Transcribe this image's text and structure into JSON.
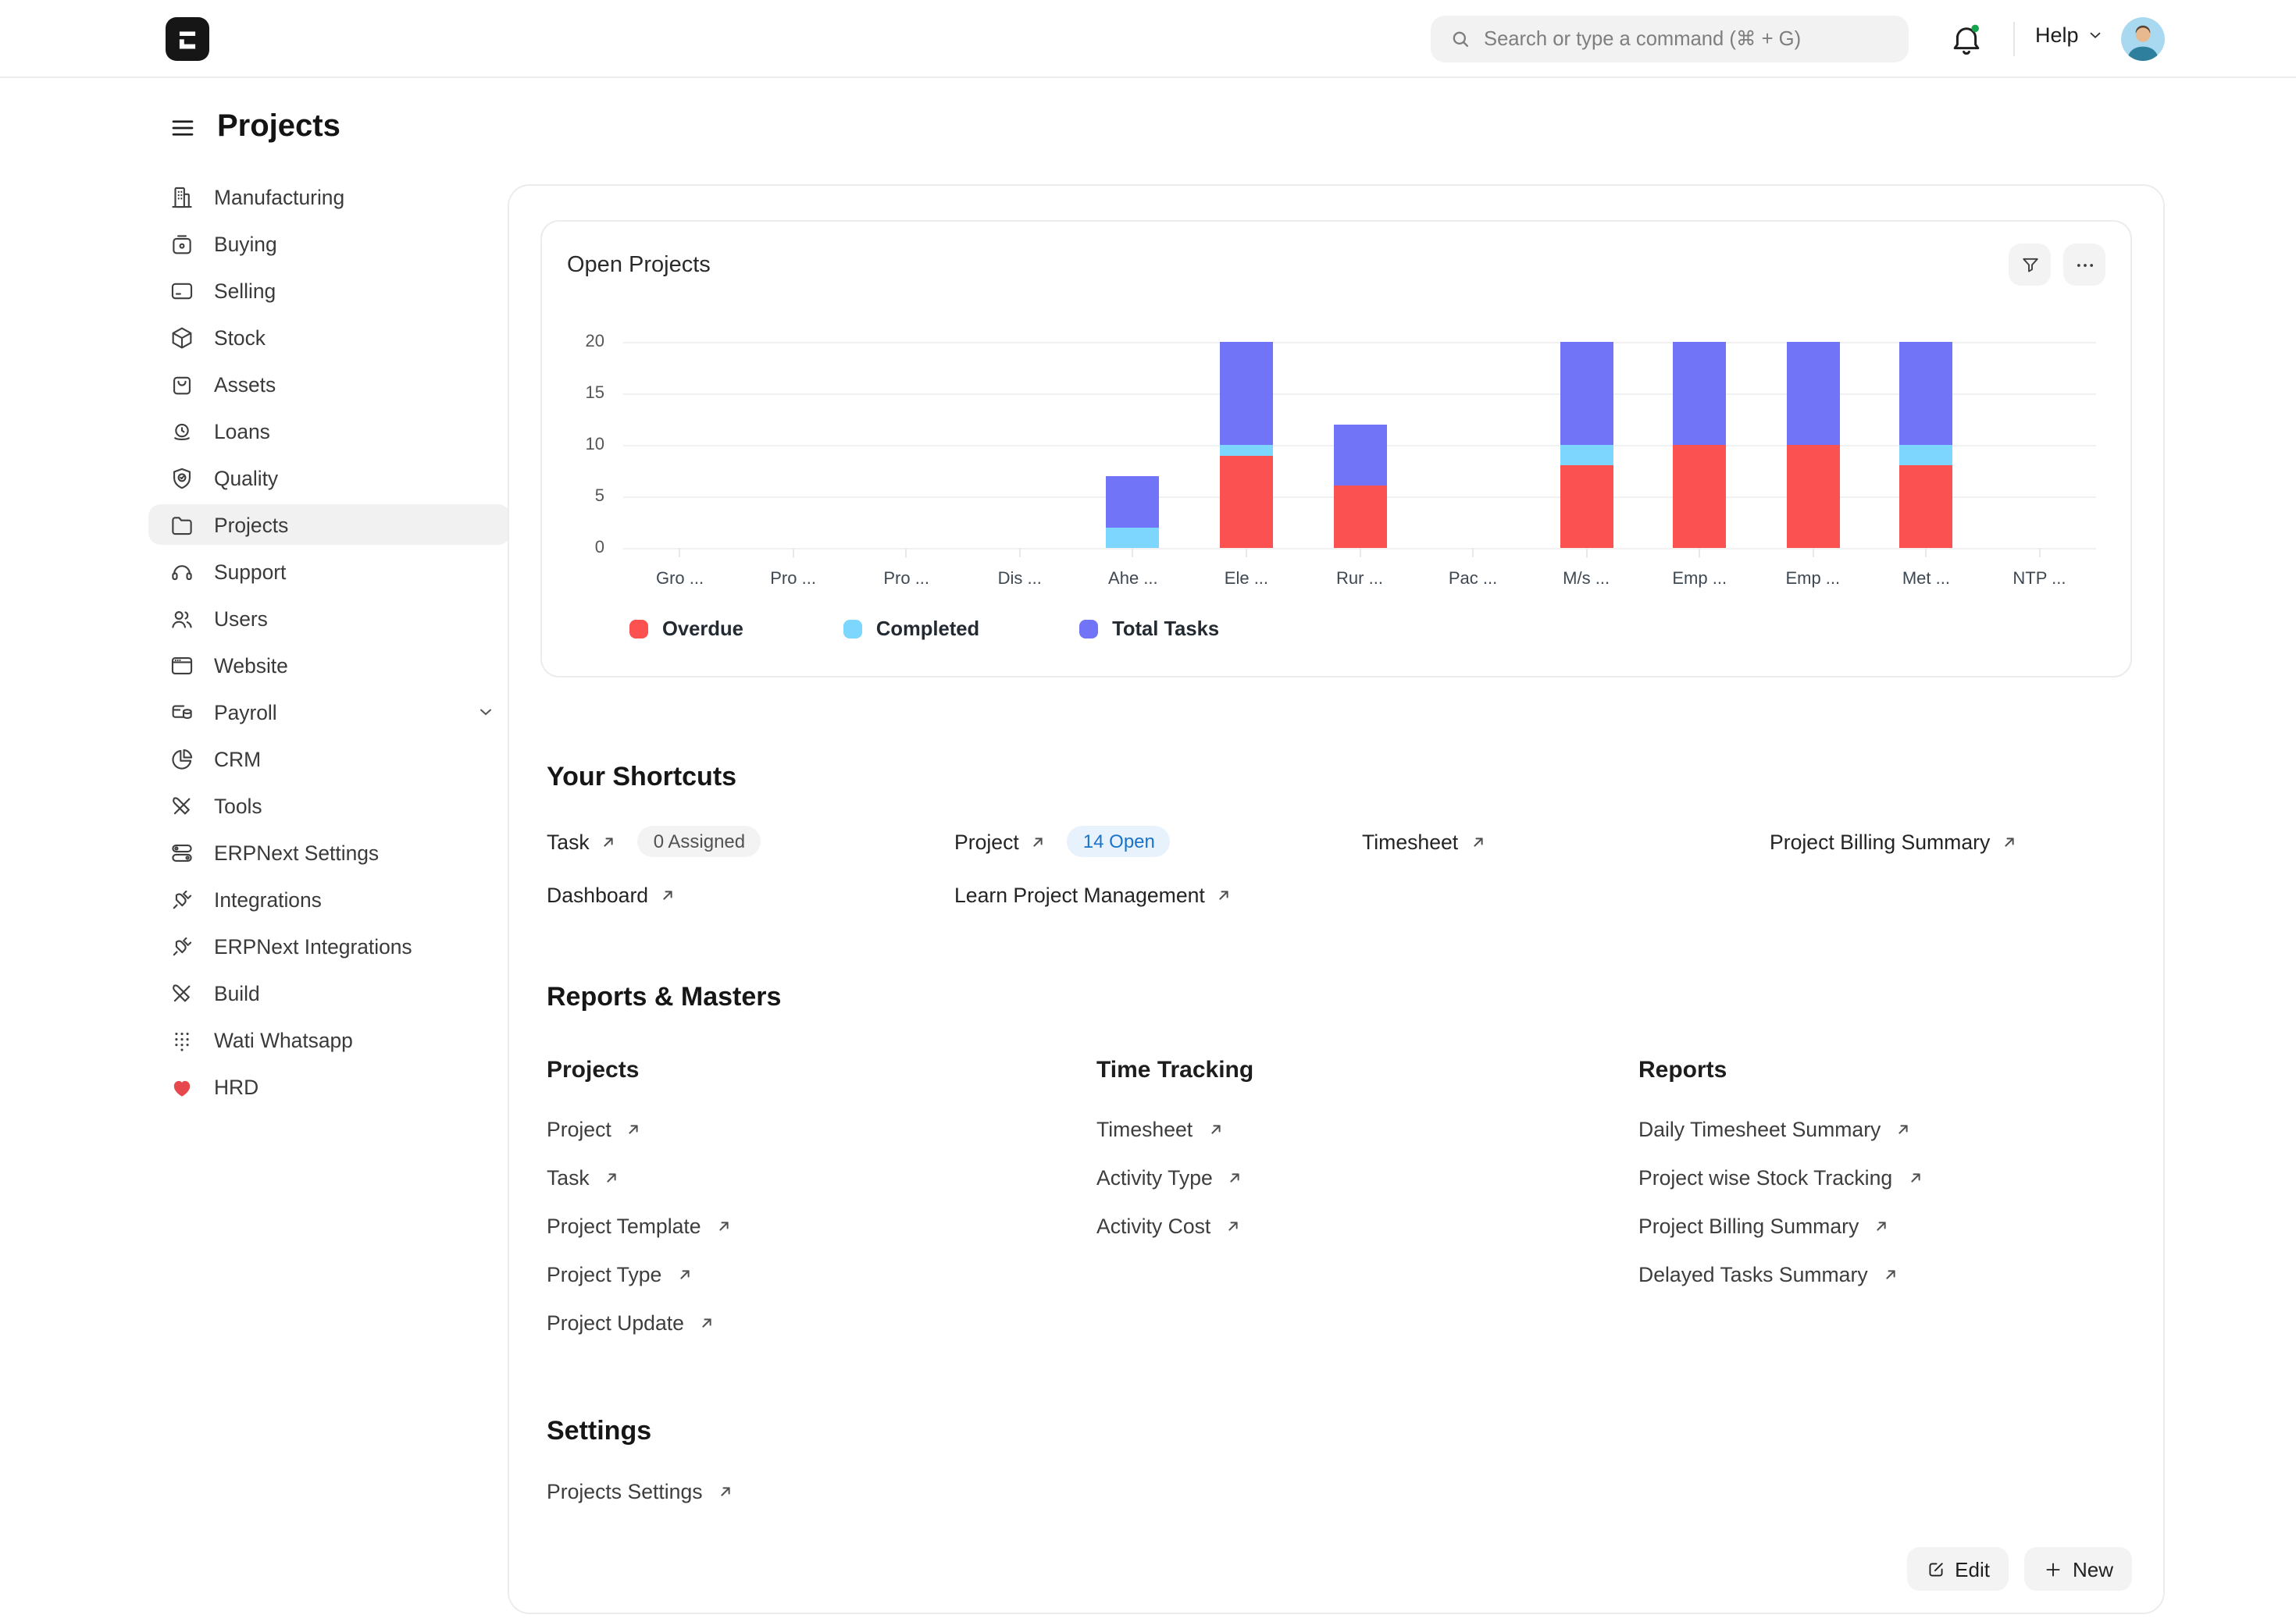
{
  "app": {
    "logo_glyph": "E"
  },
  "topbar": {
    "search_placeholder": "Search or type a command (⌘ + G)",
    "help_label": "Help"
  },
  "sidebar": {
    "title": "Projects",
    "selected": "Projects",
    "items": [
      {
        "label": "Manufacturing",
        "icon": "factory-icon"
      },
      {
        "label": "Buying",
        "icon": "buying-bag-icon"
      },
      {
        "label": "Selling",
        "icon": "credit-card-icon"
      },
      {
        "label": "Stock",
        "icon": "box-icon"
      },
      {
        "label": "Assets",
        "icon": "shopping-bag-icon"
      },
      {
        "label": "Loans",
        "icon": "loans-icon"
      },
      {
        "label": "Quality",
        "icon": "shield-check-icon"
      },
      {
        "label": "Projects",
        "icon": "folder-icon"
      },
      {
        "label": "Support",
        "icon": "headset-icon"
      },
      {
        "label": "Users",
        "icon": "users-icon"
      },
      {
        "label": "Website",
        "icon": "browser-icon"
      },
      {
        "label": "Payroll",
        "icon": "payroll-icon",
        "chevron": true
      },
      {
        "label": "CRM",
        "icon": "pie-chart-icon"
      },
      {
        "label": "Tools",
        "icon": "tools-icon"
      },
      {
        "label": "ERPNext Settings",
        "icon": "toggles-icon"
      },
      {
        "label": "Integrations",
        "icon": "plug-icon"
      },
      {
        "label": "ERPNext Integrations",
        "icon": "plug-icon"
      },
      {
        "label": "Build",
        "icon": "tools-icon"
      },
      {
        "label": "Wati Whatsapp",
        "icon": "dots-grid-icon"
      },
      {
        "label": "HRD",
        "icon": "heart-icon"
      }
    ]
  },
  "chart_card": {
    "title": "Open Projects"
  },
  "chart_data": {
    "type": "bar",
    "stacked": true,
    "title": "Open Projects",
    "categories": [
      "Gro ...",
      "Pro ...",
      "Pro ...",
      "Dis ...",
      "Ahe ...",
      "Ele ...",
      "Rur ...",
      "Pac ...",
      "M/s ...",
      "Emp ...",
      "Emp ...",
      "Met ...",
      "NTP ..."
    ],
    "series": [
      {
        "name": "Overdue",
        "color": "#fb5151",
        "values": [
          0,
          0,
          0,
          0,
          0,
          9,
          6,
          0,
          8,
          10,
          10,
          8,
          0
        ]
      },
      {
        "name": "Completed",
        "color": "#7cd6fd",
        "values": [
          0,
          0,
          0,
          0,
          2,
          1,
          0,
          0,
          2,
          0,
          0,
          2,
          0
        ]
      },
      {
        "name": "Total Tasks",
        "color": "#7274f7",
        "values": [
          0,
          0,
          0,
          0,
          5,
          10,
          6,
          0,
          10,
          10,
          10,
          10,
          0
        ]
      }
    ],
    "ylim": [
      0,
      20
    ],
    "yticks": [
      0,
      5,
      10,
      15,
      20
    ],
    "grid": true,
    "legend_position": "bottom"
  },
  "shortcuts": {
    "heading": "Your Shortcuts",
    "items": [
      {
        "label": "Task",
        "badge": "0 Assigned",
        "badge_style": "gray"
      },
      {
        "label": "Project",
        "badge": "14 Open",
        "badge_style": "blue"
      },
      {
        "label": "Timesheet"
      },
      {
        "label": "Project Billing Summary"
      },
      {
        "label": "Dashboard"
      },
      {
        "label": "Learn Project Management"
      }
    ]
  },
  "reports_masters": {
    "heading": "Reports & Masters",
    "columns": [
      {
        "title": "Projects",
        "links": [
          "Project",
          "Task",
          "Project Template",
          "Project Type",
          "Project Update"
        ]
      },
      {
        "title": "Time Tracking",
        "links": [
          "Timesheet",
          "Activity Type",
          "Activity Cost"
        ]
      },
      {
        "title": "Reports",
        "links": [
          "Daily Timesheet Summary",
          "Project wise Stock Tracking",
          "Project Billing Summary",
          "Delayed Tasks Summary"
        ]
      }
    ]
  },
  "settings_section": {
    "heading": "Settings",
    "links": [
      "Projects Settings"
    ]
  },
  "footer_actions": {
    "edit_label": "Edit",
    "new_label": "New"
  },
  "colors": {
    "accent_badge_blue_bg": "#e8f2fc",
    "accent_badge_blue_text": "#1873ca",
    "notification_dot": "#14a44d",
    "heart": "#e5484d"
  }
}
